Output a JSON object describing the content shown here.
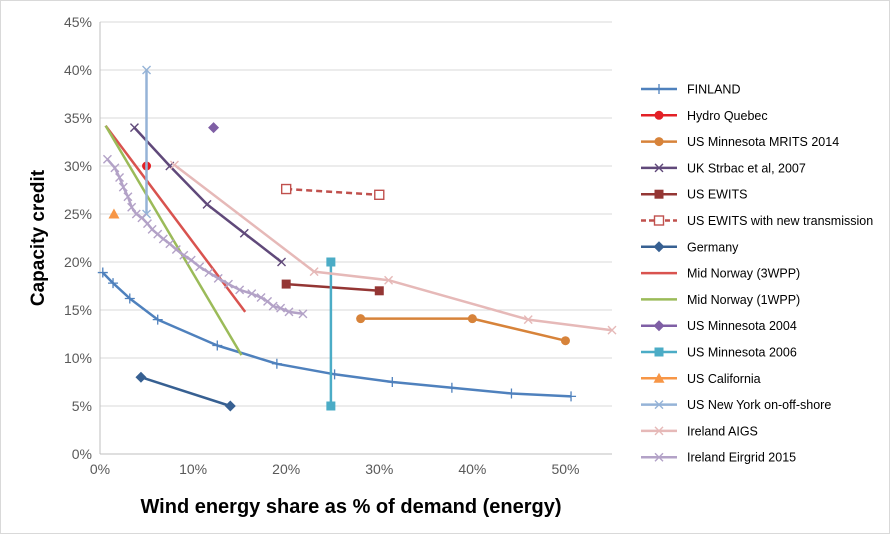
{
  "chart_data": {
    "type": "line",
    "xlabel": "Wind energy share as % of demand (energy)",
    "ylabel": "Capacity credit",
    "xlim": [
      0,
      55
    ],
    "ylim": [
      0,
      45
    ],
    "x_ticks": [
      "0%",
      "10%",
      "20%",
      "30%",
      "40%",
      "50%"
    ],
    "x_tick_values": [
      0,
      10,
      20,
      30,
      40,
      50
    ],
    "y_ticks": [
      "0%",
      "5%",
      "10%",
      "15%",
      "20%",
      "25%",
      "30%",
      "35%",
      "40%",
      "45%"
    ],
    "y_tick_values": [
      0,
      5,
      10,
      15,
      20,
      25,
      30,
      35,
      40,
      45
    ],
    "grid": "horizontal",
    "legend_position": "right",
    "series": [
      {
        "name": "FINLAND",
        "color": "#4f81bd",
        "marker": "plus",
        "dash": false,
        "points": [
          [
            0.3,
            18.9
          ],
          [
            1.4,
            17.8
          ],
          [
            3.2,
            16.2
          ],
          [
            6.2,
            14.0
          ],
          [
            12.6,
            11.3
          ],
          [
            19.0,
            9.4
          ],
          [
            25.2,
            8.3
          ],
          [
            31.4,
            7.5
          ],
          [
            37.8,
            6.9
          ],
          [
            44.2,
            6.3
          ],
          [
            50.6,
            6.0
          ]
        ]
      },
      {
        "name": "Hydro Quebec",
        "color": "#e32026",
        "marker": "circle",
        "dash": false,
        "points": [
          [
            5.0,
            30.0
          ]
        ]
      },
      {
        "name": "US Minnesota MRITS 2014",
        "color": "#d7833a",
        "marker": "circle",
        "dash": false,
        "points": [
          [
            28.0,
            14.1
          ],
          [
            40.0,
            14.1
          ],
          [
            50.0,
            11.8
          ]
        ]
      },
      {
        "name": "UK Strbac et al, 2007",
        "color": "#60497a",
        "marker": "x",
        "dash": false,
        "points": [
          [
            3.7,
            34.0
          ],
          [
            7.5,
            30.0
          ],
          [
            11.5,
            26.0
          ],
          [
            15.5,
            23.0
          ],
          [
            19.5,
            20.0
          ]
        ]
      },
      {
        "name": "US EWITS",
        "color": "#943634",
        "marker": "square",
        "dash": false,
        "points": [
          [
            20.0,
            17.7
          ],
          [
            30.0,
            17.0
          ]
        ]
      },
      {
        "name": "US EWITS with new transmission",
        "color": "#c0504d",
        "marker": "square-open",
        "dash": true,
        "points": [
          [
            20.0,
            27.6
          ],
          [
            30.0,
            27.0
          ]
        ]
      },
      {
        "name": "Germany",
        "color": "#376092",
        "marker": "diamond",
        "dash": false,
        "points": [
          [
            4.4,
            8.0
          ],
          [
            14.0,
            5.0
          ]
        ]
      },
      {
        "name": "Mid Norway (3WPP)",
        "color": "#d9534f",
        "marker": "none",
        "dash": false,
        "points": [
          [
            0.6,
            34.2
          ],
          [
            15.6,
            14.8
          ]
        ]
      },
      {
        "name": "Mid Norway (1WPP)",
        "color": "#9bbb59",
        "marker": "none",
        "dash": false,
        "points": [
          [
            0.6,
            34.2
          ],
          [
            15.2,
            10.3
          ]
        ]
      },
      {
        "name": "US Minnesota 2004",
        "color": "#7f5fa5",
        "marker": "diamond",
        "dash": false,
        "points": [
          [
            12.2,
            34.0
          ]
        ]
      },
      {
        "name": "US Minnesota 2006",
        "color": "#4bacc6",
        "marker": "square",
        "dash": false,
        "points": [
          [
            24.8,
            20.0
          ],
          [
            24.8,
            5.0
          ]
        ]
      },
      {
        "name": "US California",
        "color": "#f79646",
        "marker": "triangle",
        "dash": false,
        "points": [
          [
            1.5,
            25.0
          ]
        ]
      },
      {
        "name": "US New York on-off-shore",
        "color": "#95b3d7",
        "marker": "x",
        "dash": false,
        "points": [
          [
            5.0,
            40.0
          ],
          [
            5.0,
            25.0
          ]
        ]
      },
      {
        "name": "Ireland AIGS",
        "color": "#e6b9b8",
        "marker": "x",
        "dash": false,
        "points": [
          [
            8.0,
            30.1
          ],
          [
            23.0,
            19.0
          ],
          [
            31.0,
            18.1
          ],
          [
            46.0,
            14.0
          ],
          [
            55.0,
            12.9
          ]
        ]
      },
      {
        "name": "Ireland Eirgrid 2015",
        "color": "#b3a2c7",
        "marker": "x",
        "dash": false,
        "points": [
          [
            0.8,
            30.7
          ],
          [
            1.6,
            29.8
          ],
          [
            2.1,
            28.8
          ],
          [
            2.5,
            27.8
          ],
          [
            3.0,
            26.8
          ],
          [
            3.4,
            25.7
          ],
          [
            3.9,
            25.0
          ],
          [
            4.5,
            24.6
          ],
          [
            5.1,
            24.0
          ],
          [
            5.6,
            23.4
          ],
          [
            6.2,
            22.9
          ],
          [
            6.8,
            22.4
          ],
          [
            7.5,
            21.9
          ],
          [
            8.2,
            21.3
          ],
          [
            9.0,
            20.7
          ],
          [
            9.8,
            20.2
          ],
          [
            10.7,
            19.5
          ],
          [
            11.7,
            18.9
          ],
          [
            12.7,
            18.3
          ],
          [
            13.8,
            17.7
          ],
          [
            15.0,
            17.1
          ],
          [
            16.3,
            16.7
          ],
          [
            17.3,
            16.3
          ],
          [
            18.0,
            15.9
          ],
          [
            18.6,
            15.4
          ],
          [
            19.4,
            15.2
          ],
          [
            20.3,
            14.8
          ],
          [
            21.8,
            14.6
          ]
        ]
      }
    ]
  }
}
